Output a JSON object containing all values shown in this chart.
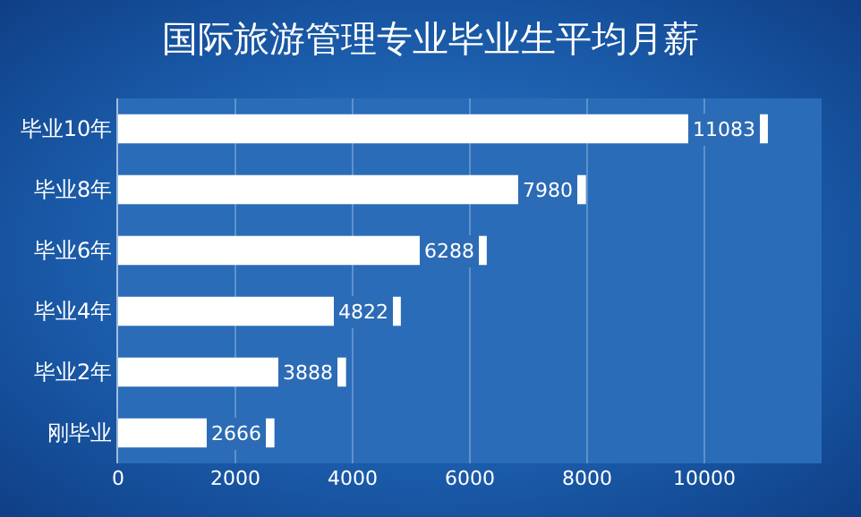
{
  "chart_data": {
    "type": "bar",
    "orientation": "horizontal",
    "title": "国际旅游管理专业毕业生平均月薪",
    "categories": [
      "毕业10年",
      "毕业8年",
      "毕业6年",
      "毕业4年",
      "毕业2年",
      "刚毕业"
    ],
    "values": [
      11083,
      7980,
      6288,
      4822,
      3888,
      2666
    ],
    "color": "#ffffff",
    "xlim": [
      0,
      12000
    ],
    "xticks": [
      0,
      2000,
      4000,
      6000,
      8000,
      10000
    ],
    "grid": "x",
    "data_labels": true
  }
}
